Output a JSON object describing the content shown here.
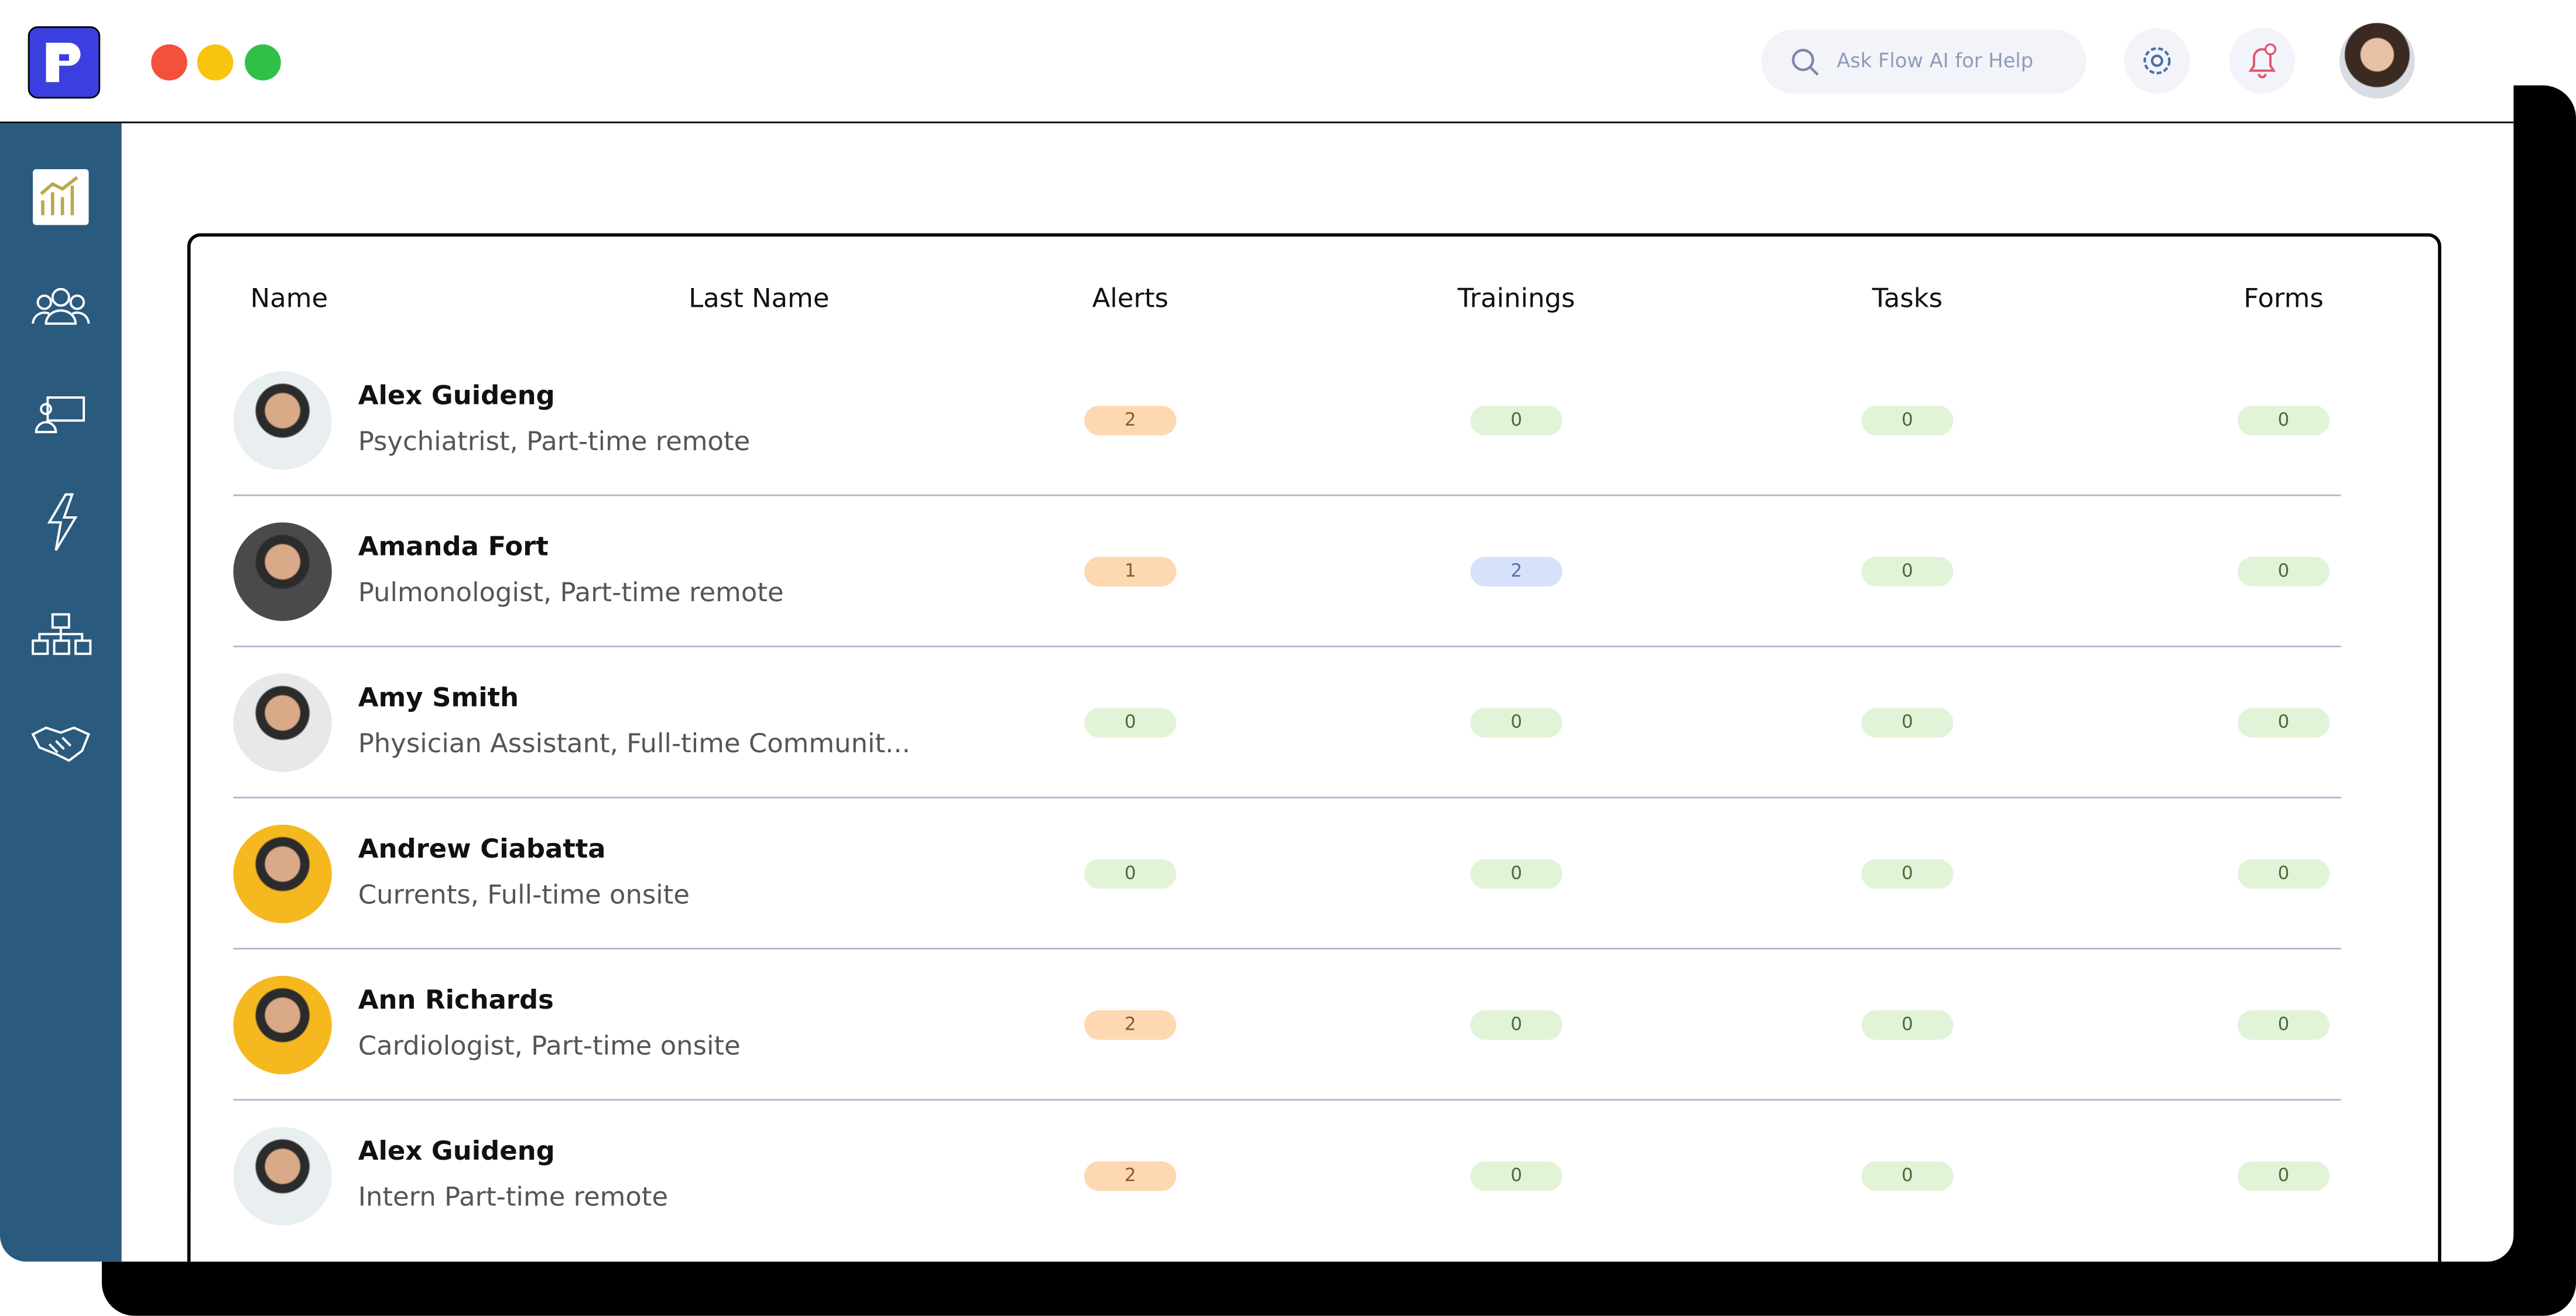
{
  "header": {
    "search_placeholder": "Ask Flow AI for Help"
  },
  "table": {
    "columns": [
      "Name",
      "Last Name",
      "Alerts",
      "Trainings",
      "Tasks",
      "Forms"
    ],
    "rows": [
      {
        "name": "Alex Guideng",
        "subtitle": "Psychiatrist, Part-time remote",
        "alerts": 2,
        "trainings": 0,
        "tasks": 0,
        "forms": 0
      },
      {
        "name": "Amanda Fort",
        "subtitle": "Pulmonologist, Part-time remote",
        "alerts": 1,
        "trainings": 2,
        "tasks": 0,
        "forms": 0
      },
      {
        "name": "Amy Smith",
        "subtitle": "Physician Assistant, Full-time Communit...",
        "alerts": 0,
        "trainings": 0,
        "tasks": 0,
        "forms": 0
      },
      {
        "name": "Andrew Ciabatta",
        "subtitle": "Currents, Full-time onsite",
        "alerts": 0,
        "trainings": 0,
        "tasks": 0,
        "forms": 0
      },
      {
        "name": "Ann Richards",
        "subtitle": "Cardiologist, Part-time onsite",
        "alerts": 2,
        "trainings": 0,
        "tasks": 0,
        "forms": 0
      },
      {
        "name": "Alex Guideng",
        "subtitle": "Intern Part-time remote",
        "alerts": 2,
        "trainings": 0,
        "tasks": 0,
        "forms": 0
      }
    ]
  }
}
